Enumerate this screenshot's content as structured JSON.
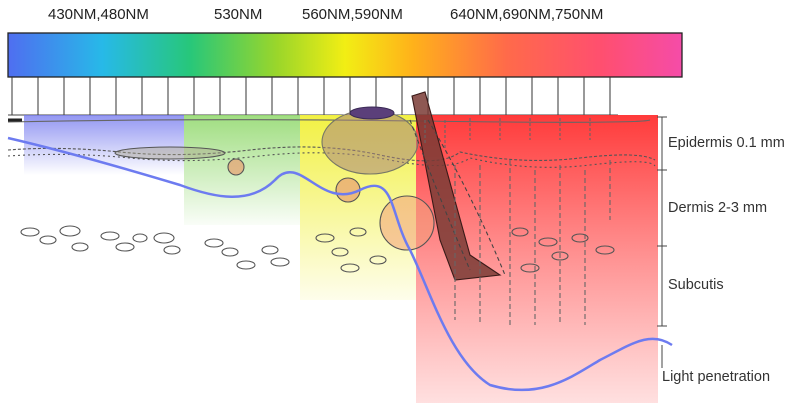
{
  "wavelength_labels": {
    "w430_480": "430NM,480NM",
    "w530": "530NM",
    "w560_590": "560NM,590NM",
    "w640_750": "640NM,690NM,750NM"
  },
  "layers": {
    "epidermis": "Epidermis 0.1 mm",
    "dermis": "Dermis 2-3 mm",
    "subcutis": "Subcutis"
  },
  "legend": {
    "light_penetration": "Light penetration"
  },
  "colors": {
    "blue_zone": "#6f74ee",
    "green_zone": "#8fd86a",
    "yellow_zone": "#f1f03a",
    "red_zone": "#ff3b3b",
    "penetration_curve": "#6d7bf0",
    "spectrum": [
      "#4f6ef0",
      "#27b9e8",
      "#27c77a",
      "#9bd62a",
      "#f2ee14",
      "#ffb21a",
      "#ff6a4a",
      "#ff4f6f",
      "#f54ca8"
    ]
  }
}
